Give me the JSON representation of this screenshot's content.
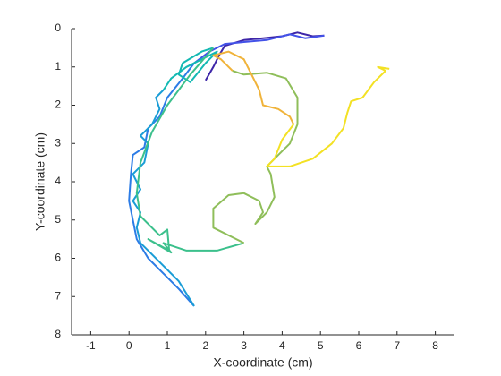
{
  "chart_data": {
    "type": "line",
    "xlabel": "X-coordinate (cm)",
    "ylabel": "Y-coordinate (cm)",
    "xlim": [
      -1.5,
      8.5
    ],
    "xticks": [
      -1,
      0,
      1,
      2,
      3,
      4,
      5,
      6,
      7,
      8
    ],
    "ylim": [
      0,
      8
    ],
    "yticks": [
      0,
      1,
      2,
      3,
      4,
      5,
      6,
      7,
      8
    ],
    "y_reversed": true,
    "series": [
      {
        "color": "#3e26a8",
        "x": [
          2.0,
          2.2,
          2.35,
          2.5,
          3.0,
          3.5,
          4.0,
          4.4,
          4.8,
          5.1
        ],
        "y": [
          1.35,
          1.0,
          0.7,
          0.45,
          0.3,
          0.25,
          0.2,
          0.1,
          0.2,
          0.18
        ]
      },
      {
        "color": "#4352e8",
        "x": [
          5.1,
          4.6,
          4.2,
          3.6,
          3.0,
          2.5,
          2.1,
          1.7
        ],
        "y": [
          0.18,
          0.25,
          0.15,
          0.3,
          0.35,
          0.4,
          0.6,
          0.9
        ]
      },
      {
        "color": "#2c7ce6",
        "x": [
          1.7,
          1.4,
          1.0,
          0.8,
          0.5,
          0.4,
          0.1,
          0.05,
          0.0,
          0.1,
          0.2,
          0.5,
          0.9,
          1.3,
          1.7
        ],
        "y": [
          0.9,
          1.3,
          1.8,
          2.3,
          2.6,
          3.1,
          3.3,
          3.8,
          4.5,
          5.0,
          5.5,
          6.0,
          6.4,
          6.8,
          7.25
        ]
      },
      {
        "color": "#1a9dd6",
        "x": [
          1.7,
          1.3,
          0.6,
          0.3,
          0.2,
          0.3,
          0.1,
          0.3,
          0.1,
          0.4,
          0.5,
          0.3,
          0.6,
          0.8,
          0.7,
          0.9
        ],
        "y": [
          7.25,
          6.6,
          5.9,
          5.6,
          5.2,
          4.8,
          4.5,
          4.2,
          3.8,
          3.5,
          3.0,
          2.8,
          2.5,
          2.1,
          1.8,
          1.6
        ]
      },
      {
        "color": "#13b9b3",
        "x": [
          0.9,
          1.1,
          1.5,
          1.9,
          2.3,
          2.0,
          1.6,
          1.3,
          1.4,
          1.9,
          2.2
        ],
        "y": [
          1.6,
          1.3,
          1.0,
          0.8,
          0.6,
          0.9,
          1.4,
          1.2,
          0.9,
          0.6,
          0.5
        ]
      },
      {
        "color": "#3cc08c",
        "x": [
          2.2,
          1.6,
          1.0,
          0.6,
          0.3,
          0.2,
          0.3,
          0.8,
          1.0,
          1.05,
          0.5,
          1.1,
          0.9,
          1.5,
          2.3,
          3.0
        ],
        "y": [
          0.5,
          1.2,
          2.0,
          2.7,
          3.5,
          4.3,
          4.9,
          5.4,
          5.25,
          5.8,
          5.5,
          5.85,
          5.6,
          5.8,
          5.8,
          5.6
        ]
      },
      {
        "color": "#8fbe5a",
        "x": [
          3.0,
          2.5,
          2.2,
          2.2,
          2.6,
          3.0,
          3.4,
          3.5,
          3.3,
          3.6,
          3.8,
          3.7,
          3.6,
          3.9,
          4.2,
          4.4,
          4.4,
          4.1,
          3.6,
          3.0,
          2.7
        ],
        "y": [
          5.6,
          5.35,
          5.2,
          4.7,
          4.35,
          4.3,
          4.5,
          4.8,
          5.1,
          4.8,
          4.4,
          3.8,
          3.6,
          3.3,
          3.0,
          2.5,
          1.8,
          1.3,
          1.15,
          1.2,
          1.1
        ]
      },
      {
        "color": "#f0b33a",
        "x": [
          2.7,
          2.4,
          2.2,
          2.6,
          3.0,
          3.2,
          3.4,
          3.5,
          3.9,
          4.2,
          4.3
        ],
        "y": [
          1.1,
          0.8,
          0.7,
          0.6,
          0.8,
          1.2,
          1.6,
          2.0,
          2.1,
          2.3,
          2.5
        ]
      },
      {
        "color": "#f3e124",
        "x": [
          4.3,
          4.0,
          3.8,
          3.6,
          4.2,
          4.8,
          5.3,
          5.6,
          5.7,
          5.8,
          6.1,
          6.4,
          6.7,
          6.5,
          6.8
        ],
        "y": [
          2.5,
          2.9,
          3.4,
          3.6,
          3.6,
          3.4,
          3.0,
          2.6,
          2.2,
          1.9,
          1.8,
          1.4,
          1.1,
          1.0,
          1.05
        ]
      }
    ]
  }
}
